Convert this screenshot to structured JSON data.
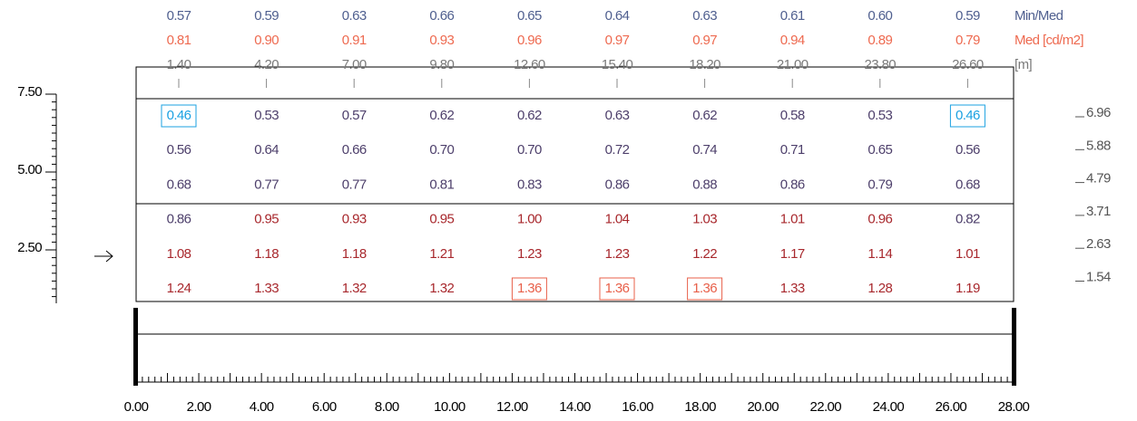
{
  "top_rows": {
    "min_med": {
      "label": "Min/Med",
      "values": [
        "0.57",
        "0.59",
        "0.63",
        "0.66",
        "0.65",
        "0.64",
        "0.63",
        "0.61",
        "0.60",
        "0.59"
      ]
    },
    "med": {
      "label": "Med [cd/m2]",
      "values": [
        "0.81",
        "0.90",
        "0.91",
        "0.93",
        "0.96",
        "0.97",
        "0.97",
        "0.94",
        "0.89",
        "0.79"
      ]
    },
    "positions": {
      "label": "[m]",
      "values": [
        "1.40",
        "4.20",
        "7.00",
        "9.80",
        "12.60",
        "15.40",
        "18.20",
        "21.00",
        "23.80",
        "26.60"
      ]
    }
  },
  "grid": [
    [
      "0.46",
      "0.53",
      "0.57",
      "0.62",
      "0.62",
      "0.63",
      "0.62",
      "0.58",
      "0.53",
      "0.46"
    ],
    [
      "0.56",
      "0.64",
      "0.66",
      "0.70",
      "0.70",
      "0.72",
      "0.74",
      "0.71",
      "0.65",
      "0.56"
    ],
    [
      "0.68",
      "0.77",
      "0.77",
      "0.81",
      "0.83",
      "0.86",
      "0.88",
      "0.86",
      "0.79",
      "0.68"
    ],
    [
      "0.86",
      "0.95",
      "0.93",
      "0.95",
      "1.00",
      "1.04",
      "1.03",
      "1.01",
      "0.96",
      "0.82"
    ],
    [
      "1.08",
      "1.18",
      "1.18",
      "1.21",
      "1.23",
      "1.23",
      "1.22",
      "1.17",
      "1.14",
      "1.01"
    ],
    [
      "1.24",
      "1.33",
      "1.32",
      "1.32",
      "1.36",
      "1.36",
      "1.36",
      "1.33",
      "1.28",
      "1.19"
    ]
  ],
  "left_scale": [
    "7.50",
    "5.00",
    "2.50"
  ],
  "right_scale": [
    "6.96",
    "5.88",
    "4.79",
    "3.71",
    "2.63",
    "1.54"
  ],
  "bottom_scale": [
    "0.00",
    "2.00",
    "4.00",
    "6.00",
    "8.00",
    "10.00",
    "12.00",
    "14.00",
    "16.00",
    "18.00",
    "20.00",
    "22.00",
    "24.00",
    "26.00",
    "28.00"
  ]
}
